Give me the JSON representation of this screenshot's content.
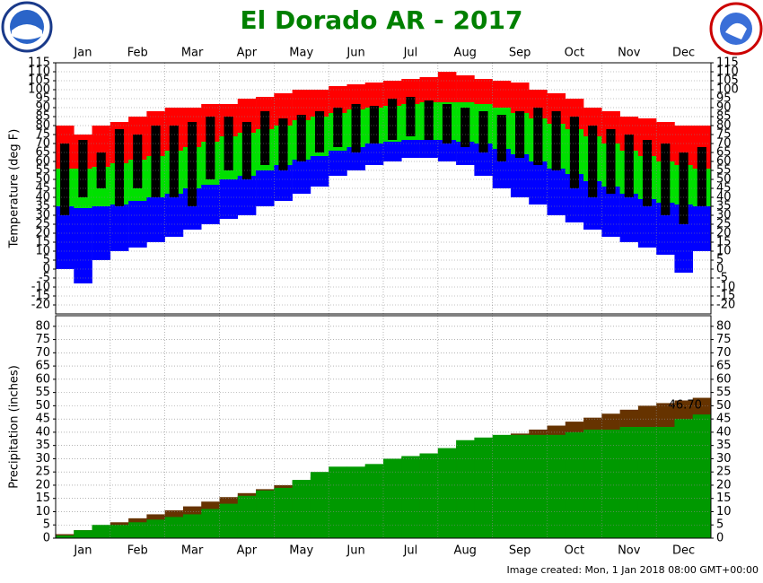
{
  "chart_data": [
    {
      "type": "range",
      "title": "El Dorado AR - 2017",
      "y_label": "Temperature (deg F)",
      "categories": [
        null,
        "Jan",
        null,
        null,
        "Feb",
        null,
        null,
        "Mar",
        null,
        null,
        "Apr",
        null,
        null,
        "May",
        null,
        null,
        "Jun",
        null,
        null,
        "Jul",
        null,
        null,
        "Aug",
        null,
        null,
        "Sep",
        null,
        null,
        "Oct",
        null,
        null,
        "Nov",
        null,
        null,
        "Dec",
        null
      ],
      "series": [
        {
          "color": "#ff0000",
          "values": [
            80,
            75,
            80,
            82,
            85,
            88,
            90,
            90,
            92,
            92,
            95,
            96,
            98,
            100,
            100,
            102,
            103,
            104,
            105,
            106,
            107,
            110,
            108,
            106,
            105,
            104,
            100,
            98,
            95,
            90,
            88,
            85,
            84,
            82,
            80,
            80
          ]
        },
        {
          "color": "#00e000",
          "values": [
            56,
            56,
            57,
            59,
            61,
            63,
            66,
            68,
            71,
            74,
            76,
            78,
            80,
            83,
            85,
            87,
            89,
            90,
            91,
            92,
            93,
            93,
            93,
            92,
            90,
            87,
            84,
            81,
            78,
            74,
            70,
            66,
            63,
            60,
            58,
            56
          ]
        },
        {
          "color": "#0000ff",
          "values": [
            35,
            34,
            35,
            36,
            38,
            40,
            42,
            45,
            47,
            50,
            52,
            55,
            58,
            61,
            63,
            66,
            68,
            70,
            71,
            72,
            72,
            72,
            71,
            70,
            67,
            64,
            60,
            56,
            53,
            49,
            46,
            42,
            39,
            37,
            36,
            35
          ]
        },
        {
          "values": [
            0,
            -8,
            5,
            10,
            12,
            15,
            18,
            22,
            25,
            28,
            30,
            35,
            38,
            42,
            46,
            52,
            55,
            58,
            60,
            62,
            62,
            60,
            58,
            52,
            45,
            40,
            36,
            30,
            26,
            22,
            18,
            15,
            12,
            8,
            -2,
            10
          ]
        },
        {
          "color": "#000000",
          "values": [
            70,
            72,
            65,
            78,
            75,
            80,
            80,
            82,
            85,
            85,
            82,
            88,
            84,
            86,
            88,
            90,
            92,
            91,
            95,
            96,
            94,
            92,
            90,
            88,
            86,
            88,
            90,
            88,
            85,
            80,
            78,
            75,
            72,
            70,
            65,
            68
          ]
        },
        {
          "values": [
            30,
            40,
            45,
            35,
            45,
            40,
            40,
            35,
            50,
            55,
            50,
            58,
            55,
            60,
            65,
            68,
            65,
            70,
            72,
            74,
            72,
            70,
            68,
            65,
            60,
            62,
            58,
            55,
            45,
            40,
            42,
            40,
            35,
            30,
            25,
            35
          ]
        }
      ],
      "ylim": [
        -25,
        115
      ],
      "yticks": [
        -20,
        -15,
        -10,
        -5,
        0,
        5,
        10,
        15,
        20,
        25,
        30,
        35,
        40,
        45,
        50,
        55,
        60,
        65,
        70,
        75,
        80,
        85,
        90,
        95,
        100,
        105,
        110,
        115
      ],
      "grid": true
    },
    {
      "type": "bar",
      "y_label": "Precipitation (inches)",
      "categories": [
        null,
        "Jan",
        null,
        null,
        "Feb",
        null,
        null,
        "Mar",
        null,
        null,
        "Apr",
        null,
        null,
        "May",
        null,
        null,
        "Jun",
        null,
        null,
        "Jul",
        null,
        null,
        "Aug",
        null,
        null,
        "Sep",
        null,
        null,
        "Oct",
        null,
        null,
        "Nov",
        null,
        null,
        "Dec",
        null
      ],
      "series": [
        {
          "color": "#663300",
          "values": [
            1.5,
            3,
            4.5,
            6,
            7.5,
            9,
            10.5,
            12,
            13.8,
            15.5,
            17,
            18.5,
            20,
            21.5,
            23,
            24.5,
            26,
            27.5,
            29,
            30.5,
            32,
            33.5,
            35,
            36.5,
            38,
            39.5,
            41,
            42.5,
            44,
            45.5,
            47,
            48.5,
            50,
            51,
            52,
            53
          ]
        },
        {
          "color": "#009900",
          "values": [
            1,
            3,
            5,
            5,
            6,
            7,
            8,
            9,
            11,
            13,
            16,
            18,
            19,
            22,
            25,
            27,
            27,
            28,
            30,
            31,
            32,
            34,
            37,
            38,
            39,
            39,
            39,
            39,
            40,
            41,
            41,
            42,
            42,
            42,
            45,
            46.7
          ],
          "value_labels": [
            null,
            null,
            null,
            null,
            null,
            null,
            null,
            null,
            null,
            null,
            null,
            null,
            null,
            null,
            null,
            null,
            null,
            null,
            null,
            null,
            null,
            null,
            null,
            null,
            null,
            null,
            null,
            null,
            null,
            null,
            null,
            null,
            null,
            null,
            null,
            "46.70"
          ]
        }
      ],
      "ylim": [
        0,
        84
      ],
      "yticks": [
        0,
        5,
        10,
        15,
        20,
        25,
        30,
        35,
        40,
        45,
        50,
        55,
        60,
        65,
        70,
        75,
        80
      ],
      "grid": true
    }
  ],
  "footer": "Image created: Mon, 1 Jan 2018 08:00 GMT+00:00"
}
